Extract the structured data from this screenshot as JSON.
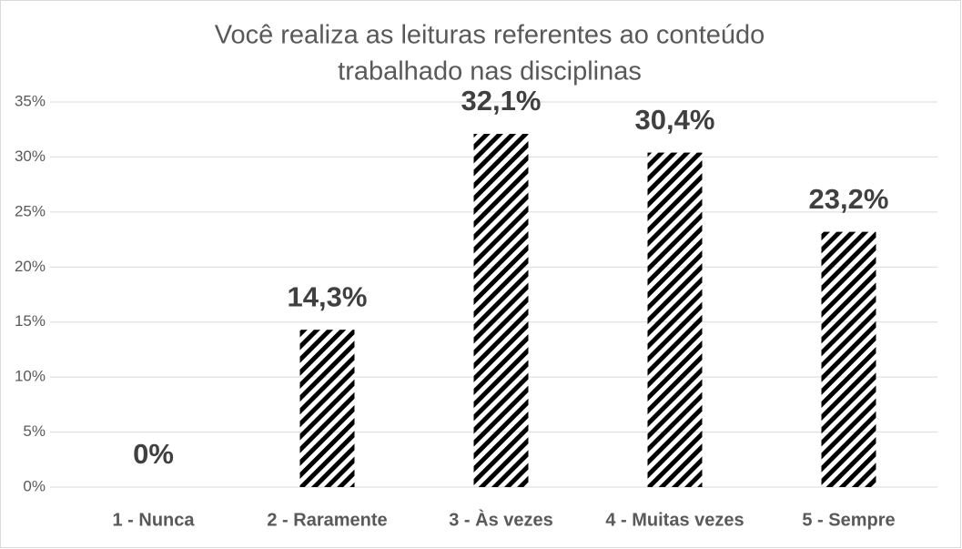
{
  "chart_data": {
    "type": "bar",
    "title": [
      "Você realiza as leituras referentes ao conteúdo",
      "trabalhado nas disciplinas"
    ],
    "categories": [
      "1 - Nunca",
      "2 - Raramente",
      "3 - Às vezes",
      "4 - Muitas vezes",
      "5 - Sempre"
    ],
    "values": [
      0,
      14.3,
      32.1,
      30.4,
      23.2
    ],
    "value_labels": [
      "0%",
      "14,3%",
      "32,1%",
      "30,4%",
      "23,2%"
    ],
    "color": "#000000",
    "ylim": [
      0,
      35
    ],
    "yticks": [
      {
        "value": 0,
        "label": "0%"
      },
      {
        "value": 5,
        "label": "5%"
      },
      {
        "value": 10,
        "label": "10%"
      },
      {
        "value": 15,
        "label": "15%"
      },
      {
        "value": 20,
        "label": "20%"
      },
      {
        "value": 25,
        "label": "25%"
      },
      {
        "value": 30,
        "label": "30%"
      },
      {
        "value": 35,
        "label": "35%"
      }
    ],
    "grid": true
  }
}
